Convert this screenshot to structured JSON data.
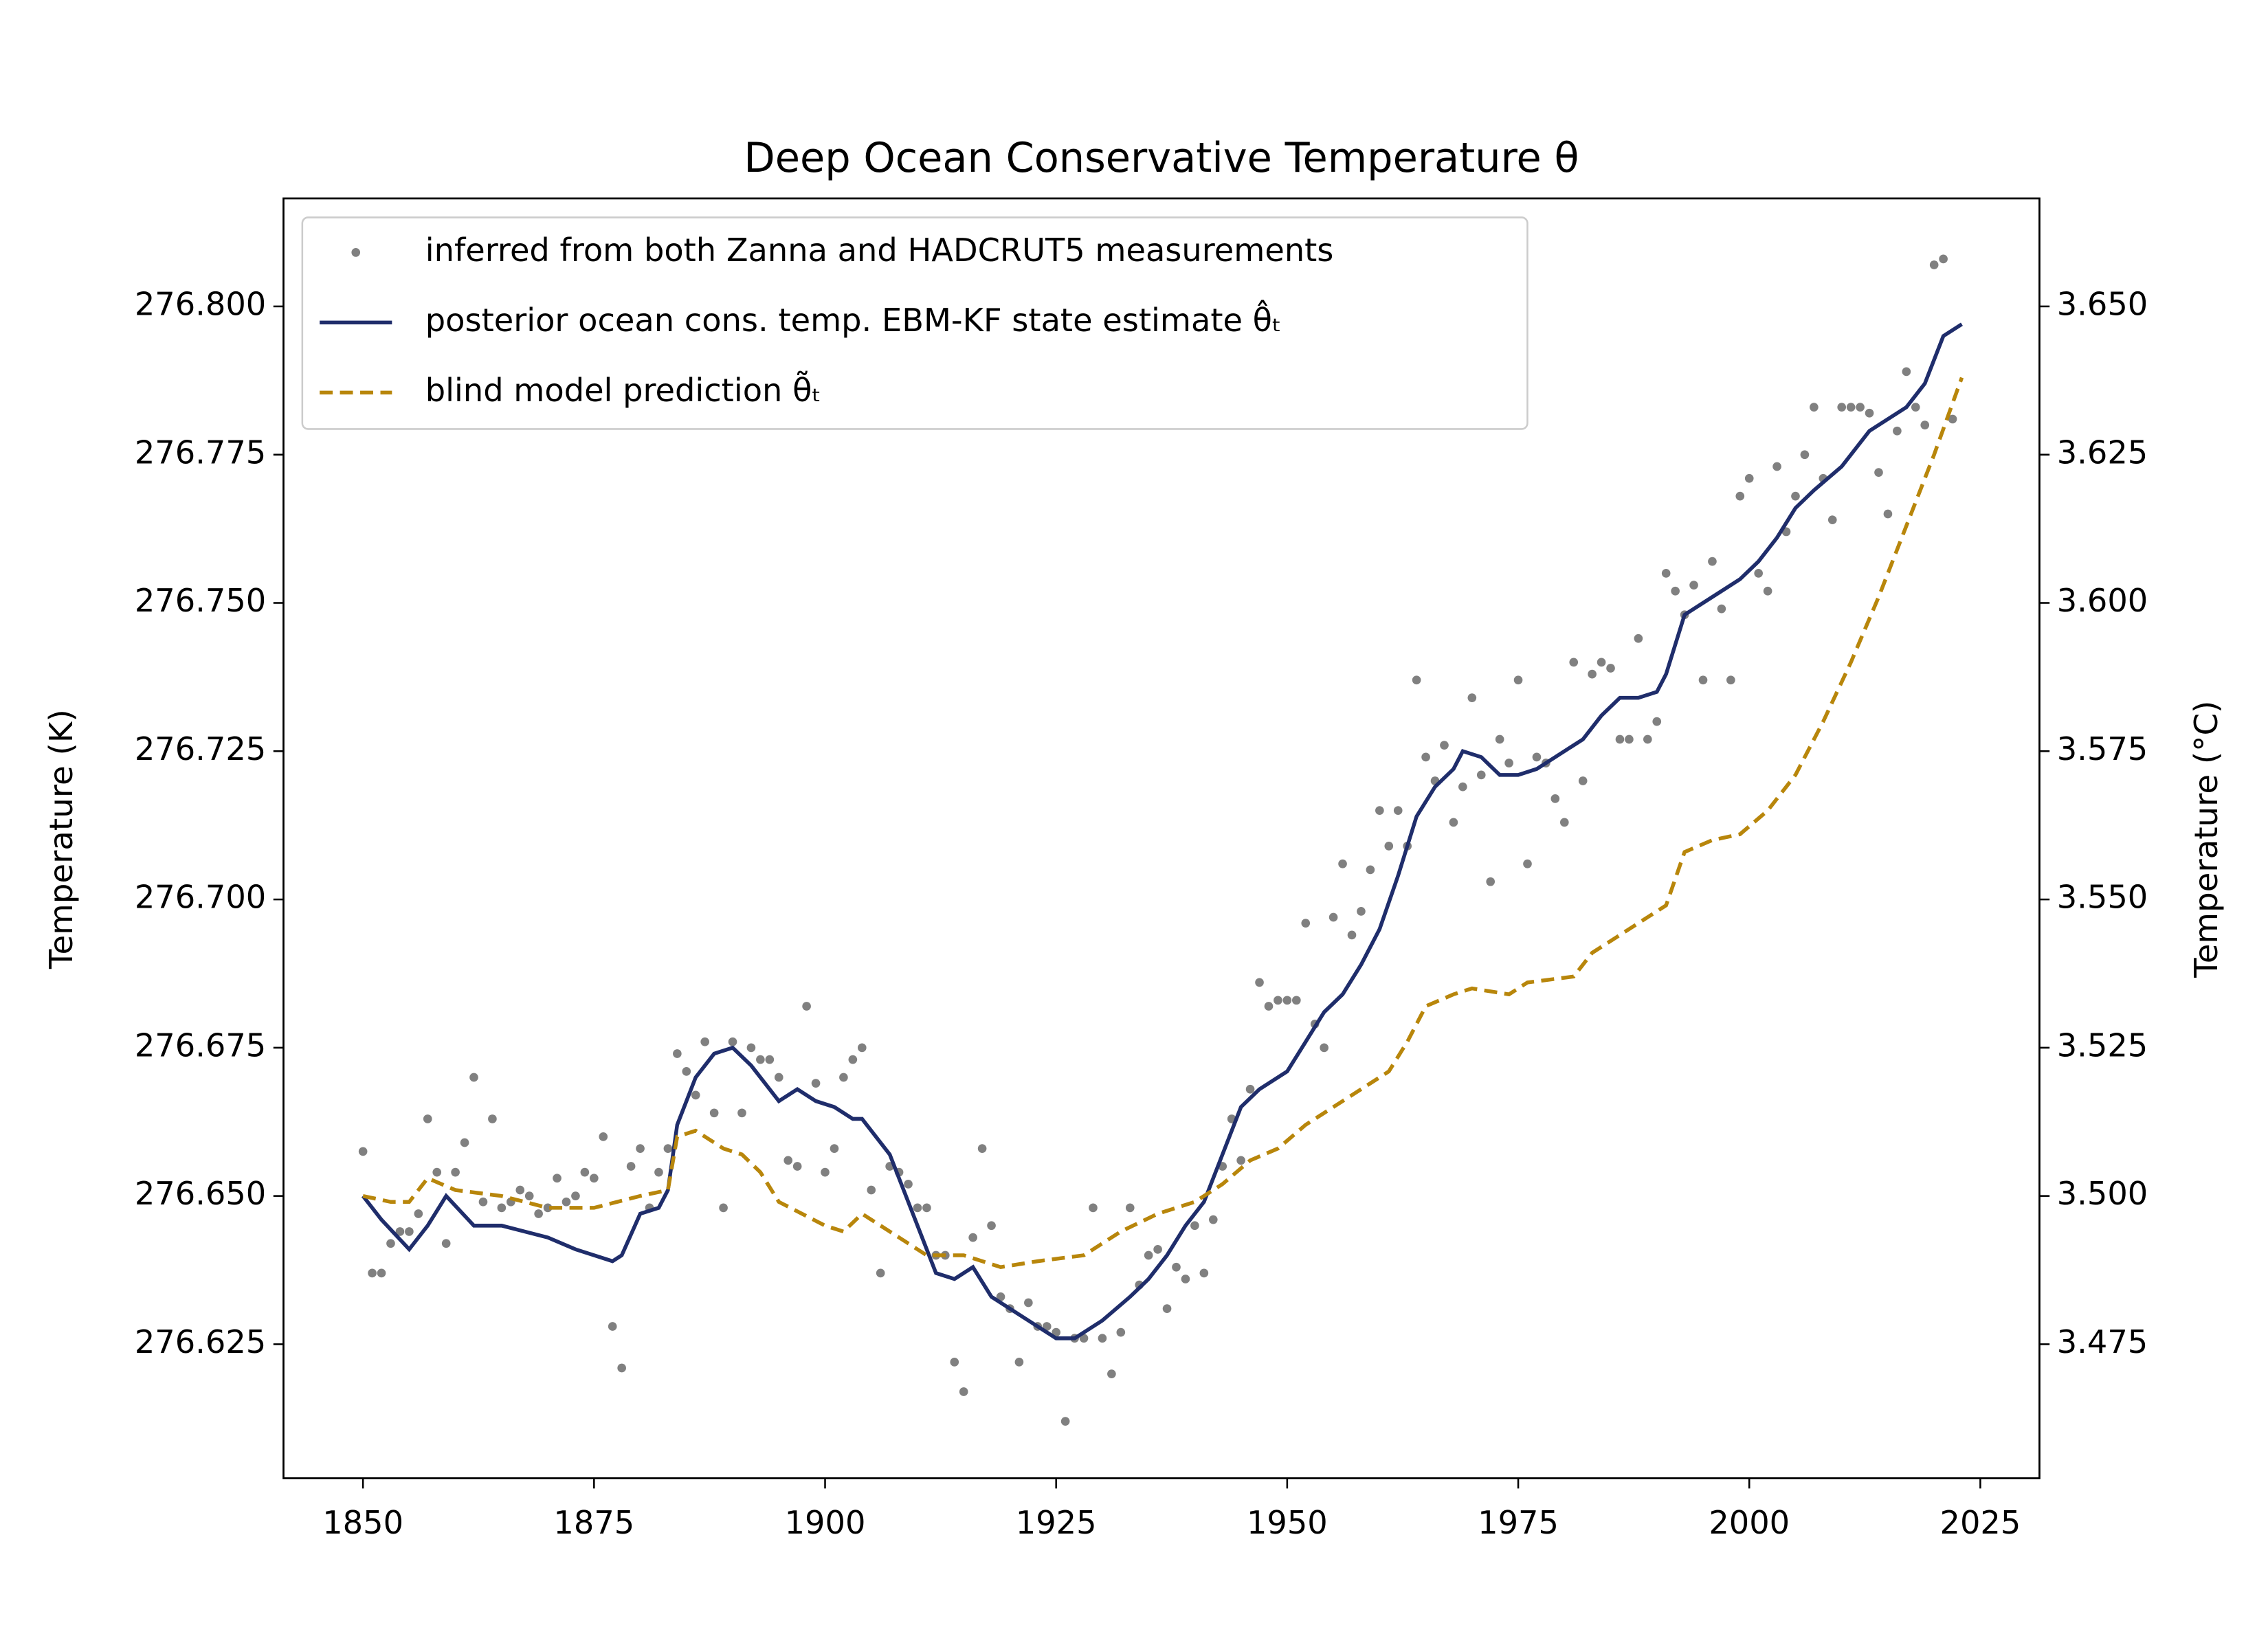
{
  "chart_data": {
    "type": "line",
    "title": "Deep Ocean Conservative Temperature θ",
    "ylabel": "Temperature (K)",
    "y2label": "Temperature (°C)",
    "xlim": [
      1841.4,
      2031.4
    ],
    "ylim": [
      276.6024,
      276.8182
    ],
    "y2lim": [
      3.4524,
      3.6682
    ],
    "xticks": [
      1850,
      1875,
      1900,
      1925,
      1950,
      1975,
      2000,
      2025
    ],
    "yticks": [
      {
        "value": 276.625,
        "label": "276.625"
      },
      {
        "value": 276.65,
        "label": "276.650"
      },
      {
        "value": 276.675,
        "label": "276.675"
      },
      {
        "value": 276.7,
        "label": "276.700"
      },
      {
        "value": 276.725,
        "label": "276.725"
      },
      {
        "value": 276.75,
        "label": "276.750"
      },
      {
        "value": 276.775,
        "label": "276.775"
      },
      {
        "value": 276.8,
        "label": "276.800"
      }
    ],
    "y2ticks": [
      {
        "value": 3.475,
        "label": "3.475"
      },
      {
        "value": 3.5,
        "label": "3.500"
      },
      {
        "value": 3.525,
        "label": "3.525"
      },
      {
        "value": 3.55,
        "label": "3.550"
      },
      {
        "value": 3.575,
        "label": "3.575"
      },
      {
        "value": 3.6,
        "label": "3.600"
      },
      {
        "value": 3.625,
        "label": "3.625"
      },
      {
        "value": 3.65,
        "label": "3.650"
      }
    ],
    "grid": false,
    "legend": "upper left",
    "series": [
      {
        "name": "inferred from both Zanna and HADCRUT5 measurements",
        "color": "#808080",
        "style": "points",
        "x": [
          1850,
          1851,
          1852,
          1853,
          1854,
          1855,
          1856,
          1857,
          1858,
          1859,
          1860,
          1861,
          1862,
          1863,
          1864,
          1865,
          1866,
          1867,
          1868,
          1869,
          1870,
          1871,
          1872,
          1873,
          1874,
          1875,
          1876,
          1877,
          1878,
          1879,
          1880,
          1881,
          1882,
          1883,
          1884,
          1885,
          1886,
          1887,
          1888,
          1889,
          1890,
          1891,
          1892,
          1893,
          1894,
          1895,
          1896,
          1897,
          1898,
          1899,
          1900,
          1901,
          1902,
          1903,
          1904,
          1905,
          1906,
          1907,
          1908,
          1909,
          1910,
          1911,
          1912,
          1913,
          1914,
          1915,
          1916,
          1917,
          1918,
          1919,
          1920,
          1921,
          1922,
          1923,
          1924,
          1925,
          1926,
          1927,
          1928,
          1929,
          1930,
          1931,
          1932,
          1933,
          1934,
          1935,
          1936,
          1937,
          1938,
          1939,
          1940,
          1941,
          1942,
          1943,
          1944,
          1945,
          1946,
          1947,
          1948,
          1949,
          1950,
          1951,
          1952,
          1953,
          1954,
          1955,
          1956,
          1957,
          1958,
          1959,
          1960,
          1961,
          1962,
          1963,
          1964,
          1965,
          1966,
          1967,
          1968,
          1969,
          1970,
          1971,
          1972,
          1973,
          1974,
          1975,
          1976,
          1977,
          1978,
          1979,
          1980,
          1981,
          1982,
          1983,
          1984,
          1985,
          1986,
          1987,
          1988,
          1989,
          1990,
          1991,
          1992,
          1993,
          1994,
          1995,
          1996,
          1997,
          1998,
          1999,
          2000,
          2001,
          2002,
          2003,
          2004,
          2005,
          2006,
          2007,
          2008,
          2009,
          2010,
          2011,
          2012,
          2013,
          2014,
          2015,
          2016,
          2017,
          2018,
          2019,
          2020,
          2021,
          2022
        ],
        "values": [
          276.6575,
          276.637,
          276.637,
          276.642,
          276.644,
          276.644,
          276.647,
          276.663,
          276.654,
          276.642,
          276.654,
          276.659,
          276.67,
          276.649,
          276.663,
          276.648,
          276.649,
          276.651,
          276.65,
          276.647,
          276.648,
          276.653,
          276.649,
          276.65,
          276.654,
          276.653,
          276.66,
          276.628,
          276.621,
          276.655,
          276.658,
          276.648,
          276.654,
          276.658,
          276.674,
          276.671,
          276.667,
          276.676,
          276.664,
          276.648,
          276.676,
          276.664,
          276.675,
          276.673,
          276.673,
          276.67,
          276.656,
          276.655,
          276.682,
          276.669,
          276.654,
          276.658,
          276.67,
          276.673,
          276.675,
          276.651,
          276.637,
          276.655,
          276.654,
          276.652,
          276.648,
          276.648,
          276.64,
          276.64,
          276.622,
          276.617,
          276.643,
          276.658,
          276.645,
          276.633,
          276.631,
          276.622,
          276.632,
          276.628,
          276.628,
          276.627,
          276.612,
          276.626,
          276.626,
          276.648,
          276.626,
          276.62,
          276.627,
          276.648,
          276.635,
          276.64,
          276.641,
          276.631,
          276.638,
          276.636,
          276.645,
          276.637,
          276.646,
          276.655,
          276.663,
          276.656,
          276.668,
          276.686,
          276.682,
          276.683,
          276.683,
          276.683,
          276.696,
          276.679,
          276.675,
          276.697,
          276.706,
          276.694,
          276.698,
          276.705,
          276.715,
          276.709,
          276.715,
          276.709,
          276.737,
          276.724,
          276.72,
          276.726,
          276.713,
          276.719,
          276.734,
          276.721,
          276.703,
          276.727,
          276.723,
          276.737,
          276.706,
          276.724,
          276.723,
          276.717,
          276.713,
          276.74,
          276.72,
          276.738,
          276.74,
          276.739,
          276.727,
          276.727,
          276.744,
          276.727,
          276.73,
          276.755,
          276.752,
          276.748,
          276.753,
          276.737,
          276.757,
          276.749,
          276.737,
          276.768,
          276.771,
          276.755,
          276.752,
          276.773,
          276.762,
          276.768,
          276.775,
          276.783,
          276.771,
          276.764,
          276.783,
          276.783,
          276.783,
          276.782,
          276.772,
          276.765,
          276.779,
          276.789,
          276.783,
          276.78,
          276.807,
          276.808,
          276.781
        ]
      },
      {
        "name": "posterior ocean cons. temp. EBM-KF state estimate θ̂ₜ",
        "color": "#1f2d6b",
        "style": "solid",
        "x": [
          1850,
          1852,
          1855,
          1857,
          1859,
          1862,
          1865,
          1870,
          1873,
          1877,
          1878,
          1880,
          1882,
          1883,
          1884,
          1886,
          1888,
          1890,
          1892,
          1895,
          1897,
          1899,
          1901,
          1903,
          1904,
          1907,
          1910,
          1912,
          1914,
          1916,
          1918,
          1921,
          1923,
          1925,
          1927,
          1930,
          1933,
          1935,
          1937,
          1939,
          1941,
          1943,
          1945,
          1947,
          1950,
          1952,
          1954,
          1956,
          1958,
          1960,
          1962,
          1964,
          1966,
          1968,
          1969,
          1971,
          1973,
          1975,
          1977,
          1979,
          1982,
          1984,
          1986,
          1988,
          1990,
          1991,
          1993,
          1995,
          1997,
          1999,
          2001,
          2003,
          2005,
          2007,
          2010,
          2013,
          2015,
          2017,
          2019,
          2021,
          2023
        ],
        "values": [
          276.65,
          276.646,
          276.641,
          276.645,
          276.65,
          276.645,
          276.645,
          276.643,
          276.641,
          276.639,
          276.64,
          276.647,
          276.648,
          276.651,
          276.662,
          276.67,
          276.674,
          276.675,
          276.672,
          276.666,
          276.668,
          276.666,
          276.665,
          276.663,
          276.663,
          276.657,
          276.645,
          276.637,
          276.636,
          276.638,
          276.633,
          276.63,
          276.628,
          276.626,
          276.626,
          276.629,
          276.633,
          276.636,
          276.64,
          276.645,
          276.649,
          276.657,
          276.665,
          276.668,
          276.671,
          276.676,
          276.681,
          276.684,
          276.689,
          276.695,
          276.704,
          276.714,
          276.719,
          276.722,
          276.725,
          276.724,
          276.721,
          276.721,
          276.722,
          276.724,
          276.727,
          276.731,
          276.734,
          276.734,
          276.735,
          276.738,
          276.748,
          276.75,
          276.752,
          276.754,
          276.757,
          276.761,
          276.766,
          276.769,
          276.773,
          276.779,
          276.781,
          276.783,
          276.787,
          276.795,
          276.797
        ]
      },
      {
        "name": "blind model prediction θ̃ₜ",
        "color": "#b8860b",
        "style": "dashed",
        "x": [
          1850,
          1853,
          1855,
          1857,
          1860,
          1865,
          1870,
          1875,
          1880,
          1883,
          1884,
          1886,
          1889,
          1891,
          1893,
          1895,
          1900,
          1902,
          1904,
          1907,
          1911,
          1915,
          1919,
          1923,
          1928,
          1932,
          1936,
          1940,
          1943,
          1946,
          1949,
          1952,
          1955,
          1958,
          1961,
          1963,
          1965,
          1968,
          1970,
          1974,
          1976,
          1981,
          1983,
          1986,
          1989,
          1991,
          1993,
          1996,
          1999,
          2002,
          2005,
          2008,
          2011,
          2014,
          2017,
          2020,
          2023
        ],
        "values": [
          276.65,
          276.649,
          276.649,
          276.653,
          276.651,
          276.65,
          276.648,
          276.648,
          276.65,
          276.651,
          276.66,
          276.661,
          276.658,
          276.657,
          276.654,
          276.649,
          276.645,
          276.644,
          276.647,
          276.644,
          276.64,
          276.64,
          276.638,
          276.639,
          276.64,
          276.644,
          276.647,
          276.649,
          276.652,
          276.656,
          276.658,
          276.662,
          276.665,
          276.668,
          276.671,
          276.676,
          276.682,
          276.684,
          276.685,
          276.684,
          276.686,
          276.687,
          276.691,
          276.694,
          276.697,
          276.699,
          276.708,
          276.71,
          276.711,
          276.715,
          276.721,
          276.73,
          276.74,
          276.751,
          276.763,
          276.775,
          276.788
        ]
      }
    ]
  }
}
